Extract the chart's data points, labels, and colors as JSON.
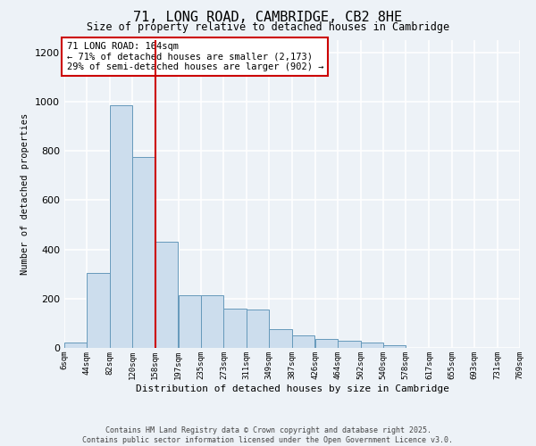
{
  "title": "71, LONG ROAD, CAMBRIDGE, CB2 8HE",
  "subtitle": "Size of property relative to detached houses in Cambridge",
  "xlabel": "Distribution of detached houses by size in Cambridge",
  "ylabel": "Number of detached properties",
  "bar_color": "#ccdded",
  "bar_edge_color": "#6699bb",
  "bin_edges": [
    6,
    44,
    82,
    120,
    158,
    197,
    235,
    273,
    311,
    349,
    387,
    426,
    464,
    502,
    540,
    578,
    617,
    655,
    693,
    731,
    769
  ],
  "bin_labels": [
    "6sqm",
    "44sqm",
    "82sqm",
    "120sqm",
    "158sqm",
    "197sqm",
    "235sqm",
    "273sqm",
    "311sqm",
    "349sqm",
    "387sqm",
    "426sqm",
    "464sqm",
    "502sqm",
    "540sqm",
    "578sqm",
    "617sqm",
    "655sqm",
    "693sqm",
    "731sqm",
    "769sqm"
  ],
  "bar_heights": [
    20,
    305,
    985,
    775,
    430,
    215,
    215,
    160,
    155,
    75,
    50,
    35,
    30,
    20,
    10,
    0,
    0,
    0,
    0,
    0,
    5
  ],
  "vline_x": 158,
  "vline_color": "#cc0000",
  "ylim": [
    0,
    1250
  ],
  "yticks": [
    0,
    200,
    400,
    600,
    800,
    1000,
    1200
  ],
  "annotation_title": "71 LONG ROAD: 164sqm",
  "annotation_line1": "← 71% of detached houses are smaller (2,173)",
  "annotation_line2": "29% of semi-detached houses are larger (902) →",
  "annotation_box_color": "#ffffff",
  "annotation_box_edge": "#cc0000",
  "footer1": "Contains HM Land Registry data © Crown copyright and database right 2025.",
  "footer2": "Contains public sector information licensed under the Open Government Licence v3.0.",
  "background_color": "#edf2f7",
  "grid_color": "#ffffff",
  "title_fontsize": 11,
  "subtitle_fontsize": 8.5
}
